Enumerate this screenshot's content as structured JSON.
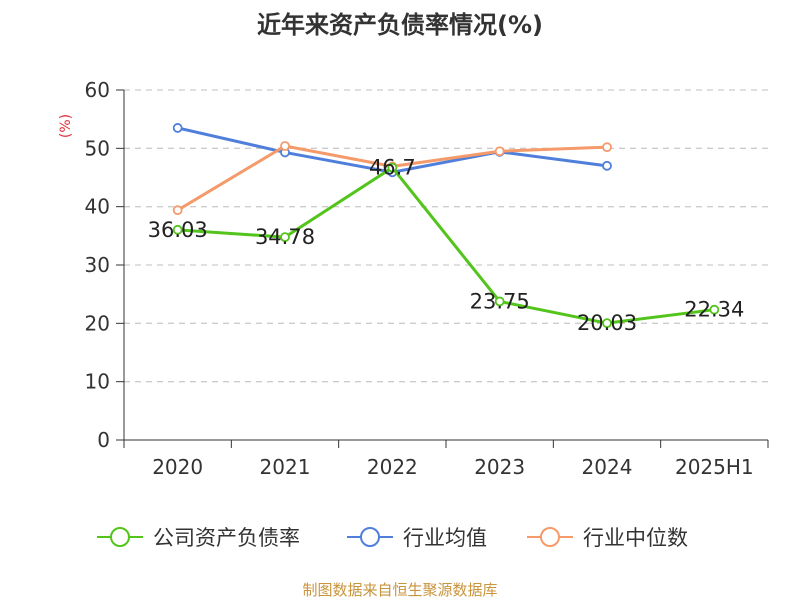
{
  "chart_data": {
    "type": "line",
    "title": "近年来资产负债率情况(%)",
    "ylabel": "(%)",
    "xlabel": "",
    "categories": [
      "2020",
      "2021",
      "2022",
      "2023",
      "2024",
      "2025H1"
    ],
    "ylim": [
      0,
      60
    ],
    "yticks": [
      0,
      10,
      20,
      30,
      40,
      50,
      60
    ],
    "grid": true,
    "legend_position": "bottom",
    "series": [
      {
        "name": "公司资产负债率",
        "color": "#52c41a",
        "values": [
          36.03,
          34.78,
          46.7,
          23.75,
          20.03,
          22.34
        ],
        "labels": [
          "36.03",
          "34.78",
          "46.7",
          "23.75",
          "20.03",
          "22.34"
        ]
      },
      {
        "name": "行业均值",
        "color": "#4f7fdb",
        "values": [
          53.5,
          49.3,
          45.9,
          49.4,
          47.0,
          null
        ]
      },
      {
        "name": "行业中位数",
        "color": "#f59a6a",
        "values": [
          39.4,
          50.4,
          46.9,
          49.5,
          50.2,
          null
        ]
      }
    ],
    "axis_label_color": "#e0303a"
  },
  "source_note": {
    "text": "制图数据来自恒生聚源数据库",
    "color": "#c8943c"
  }
}
